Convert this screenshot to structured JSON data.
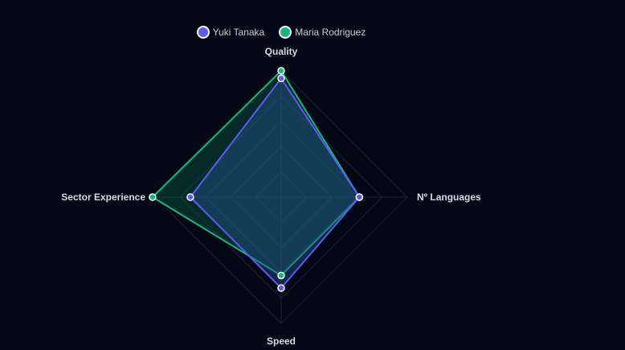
{
  "chart_data": {
    "type": "radar",
    "axes": [
      "Quality",
      "Nº Languages",
      "Speed",
      "Sector Experience"
    ],
    "rmax": 100,
    "series": [
      {
        "name": "Yuki Tanaka",
        "values": [
          94,
          62,
          72,
          72
        ],
        "color": "#5b5bf0",
        "fill": "rgba(40,80,140,0.45)"
      },
      {
        "name": "Maria Rodriguez",
        "values": [
          100,
          62,
          62,
          102
        ],
        "color": "#16b77e",
        "fill": "rgba(10,110,80,0.35)"
      }
    ]
  }
}
